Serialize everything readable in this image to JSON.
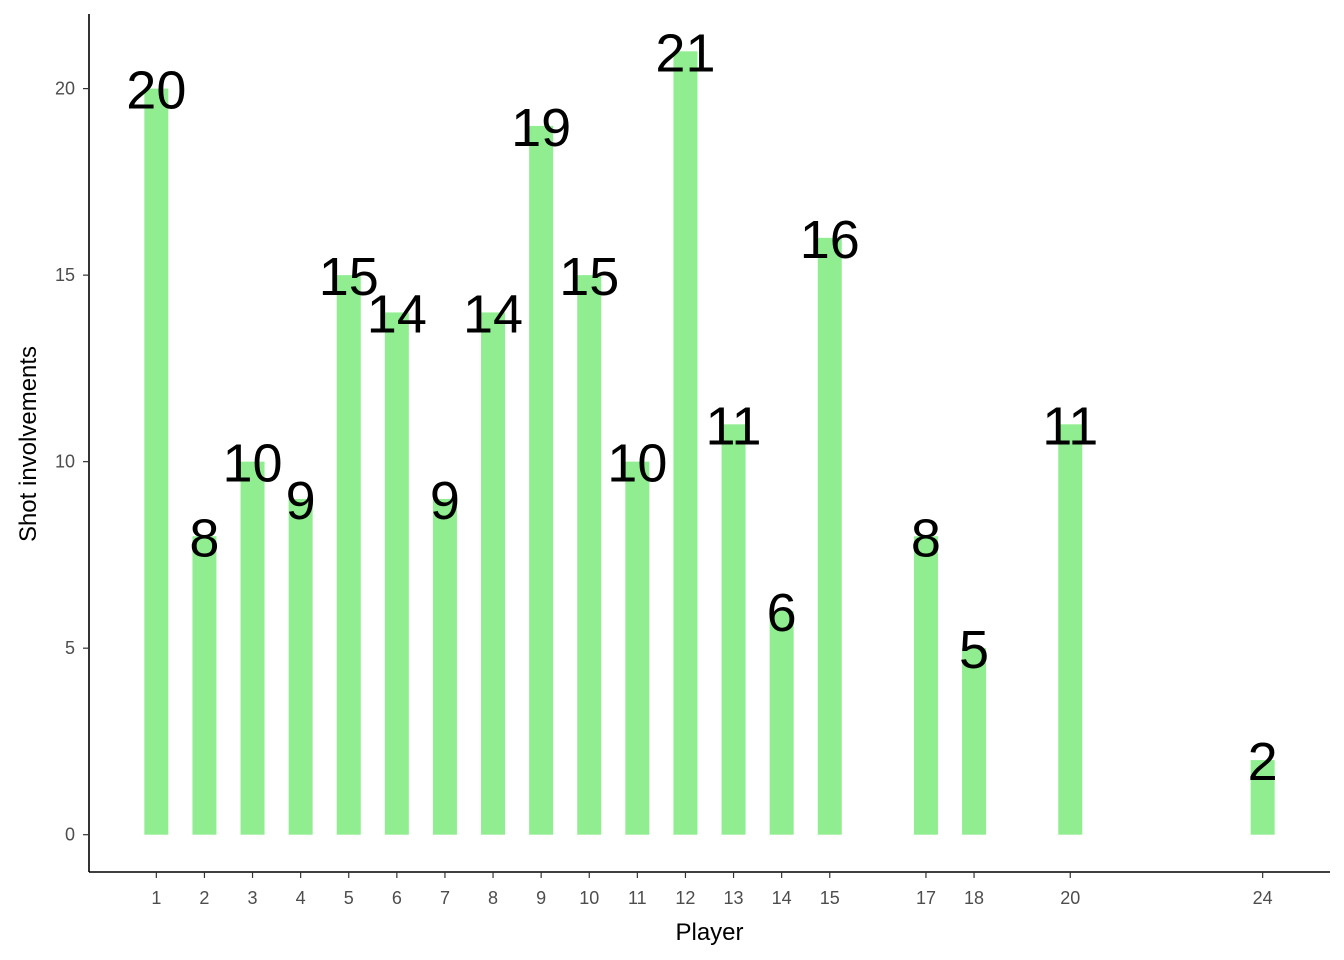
{
  "chart_data": {
    "type": "bar",
    "title": "",
    "xlabel": "Player",
    "ylabel": "Shot involvements",
    "categories": [
      1,
      2,
      3,
      4,
      5,
      6,
      7,
      8,
      9,
      10,
      11,
      12,
      13,
      14,
      15,
      17,
      18,
      20,
      24
    ],
    "values": [
      20,
      8,
      10,
      9,
      15,
      14,
      9,
      14,
      19,
      15,
      10,
      21,
      11,
      6,
      16,
      8,
      5,
      11,
      2
    ],
    "data_labels": [
      "20",
      "8",
      "10",
      "9",
      "15",
      "14",
      "9",
      "14",
      "19",
      "15",
      "10",
      "21",
      "11",
      "6",
      "16",
      "8",
      "5",
      "11",
      "2"
    ],
    "x_axis": "numeric",
    "xlim": [
      -0.4,
      25.4
    ],
    "ylim": [
      -1,
      22
    ],
    "y_ticks": [
      0,
      5,
      10,
      15,
      20
    ],
    "grid": false,
    "legend": "none",
    "bar_color": "#90EE90",
    "x_tick_label_colors": {
      "1": "#7a4a4a",
      "default": "#4d4d4d"
    }
  }
}
